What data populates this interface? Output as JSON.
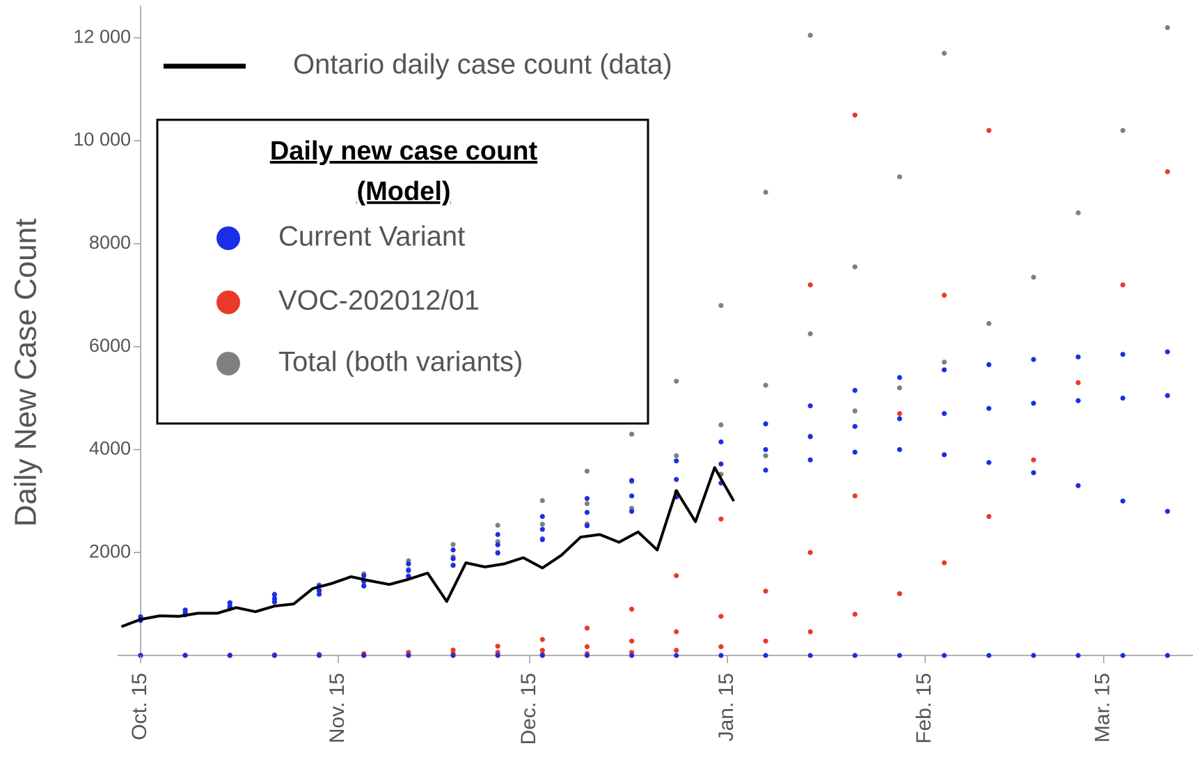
{
  "chart_data": {
    "type": "scatter",
    "y_label": "Daily New Case Count",
    "legend_title": [
      "Daily new case count",
      "(Model)"
    ],
    "xlim": [
      -3.6,
      165
    ],
    "ylim": [
      0,
      12600
    ],
    "xticks": [
      {
        "value": 0,
        "label": "Oct. 15"
      },
      {
        "value": 31,
        "label": "Nov. 15"
      },
      {
        "value": 61,
        "label": "Dec. 15"
      },
      {
        "value": 92,
        "label": "Jan. 15"
      },
      {
        "value": 123,
        "label": "Feb. 15"
      },
      {
        "value": 151,
        "label": "Mar. 15"
      }
    ],
    "yticks": [
      2000,
      4000,
      6000,
      8000,
      {
        "value": 10000,
        "label": "10 000"
      },
      {
        "value": 12000,
        "label": "12 000"
      }
    ],
    "x": [
      0,
      7,
      14,
      21,
      28,
      35,
      42,
      49,
      56,
      63,
      70,
      77,
      84,
      91,
      98,
      105,
      112,
      119,
      126,
      133,
      140,
      147,
      154,
      161
    ],
    "series": [
      {
        "name": "Current Variant",
        "color": "#1a2ee8",
        "values": [
          [
            750,
            880,
            1020,
            1180,
            1350,
            1550,
            1780,
            2050,
            2350,
            2700,
            3050,
            3400,
            3780,
            4150,
            4500,
            4850,
            5150,
            5400,
            5550,
            5650,
            5750,
            5800,
            5850,
            5900
          ],
          [
            700,
            820,
            950,
            1100,
            1260,
            1440,
            1650,
            1880,
            2150,
            2450,
            2780,
            3100,
            3420,
            3720,
            4000,
            4250,
            4450,
            4600,
            4700,
            4800,
            4900,
            4950,
            5000,
            5050
          ],
          [
            680,
            790,
            910,
            1040,
            1190,
            1350,
            1540,
            1750,
            1990,
            2250,
            2520,
            2800,
            3080,
            3350,
            3600,
            3800,
            3950,
            4000,
            3900,
            3750,
            3550,
            3300,
            3000,
            2800
          ],
          [
            0,
            0,
            0,
            0,
            0,
            0,
            0,
            0,
            0,
            0,
            0,
            0,
            0,
            0,
            0,
            0,
            0,
            0,
            0,
            0,
            0,
            0,
            0,
            0
          ]
        ]
      },
      {
        "name": "VOC-202012/01",
        "color": "#e8392a",
        "values": [
          [
            2,
            4,
            7,
            12,
            20,
            35,
            60,
            105,
            180,
            310,
            530,
            900,
            1550,
            2650,
            4500,
            7200,
            10500,
            null,
            null,
            null,
            null,
            null,
            null,
            null
          ],
          [
            1,
            2,
            3,
            5,
            8,
            13,
            22,
            36,
            60,
            100,
            170,
            280,
            460,
            760,
            1250,
            2000,
            3100,
            4700,
            7000,
            10200,
            null,
            null,
            null,
            null
          ],
          [
            0,
            0,
            0,
            0,
            1,
            2,
            4,
            7,
            12,
            20,
            35,
            60,
            100,
            170,
            280,
            460,
            800,
            1200,
            1800,
            2700,
            3800,
            5300,
            7200,
            9400
          ]
        ]
      },
      {
        "name": "Total (both variants)",
        "color": "#808080",
        "values": [
          [
            752,
            884,
            1027,
            1192,
            1370,
            1585,
            1840,
            2155,
            2530,
            3010,
            3580,
            4300,
            5330,
            6800,
            9000,
            12050,
            null,
            null,
            null,
            null,
            null,
            null,
            null,
            null
          ],
          [
            701,
            822,
            953,
            1105,
            1268,
            1453,
            1672,
            1916,
            2210,
            2550,
            2950,
            3380,
            3880,
            4480,
            5250,
            6250,
            7550,
            9300,
            11700,
            null,
            null,
            null,
            null,
            null
          ],
          [
            680,
            790,
            910,
            1040,
            1191,
            1352,
            1544,
            1757,
            2002,
            2270,
            2555,
            2860,
            3180,
            3520,
            3880,
            4260,
            4750,
            5200,
            5700,
            6450,
            7350,
            8600,
            10200,
            12200
          ]
        ]
      },
      {
        "name": "Ontario daily case count (data)",
        "color": "#000000",
        "type": "line",
        "x": [
          -3,
          0,
          3,
          6,
          9,
          12,
          15,
          18,
          21,
          24,
          27,
          30,
          33,
          36,
          39,
          42,
          45,
          48,
          51,
          54,
          57,
          60,
          63,
          66,
          69,
          72,
          75,
          78,
          81,
          84,
          87,
          90,
          93
        ],
        "values": [
          560,
          700,
          770,
          760,
          820,
          820,
          930,
          850,
          960,
          1000,
          1300,
          1400,
          1530,
          1450,
          1380,
          1480,
          1600,
          1050,
          1800,
          1720,
          1780,
          1900,
          1700,
          1950,
          2300,
          2350,
          2200,
          2400,
          2050,
          3200,
          2600,
          3650,
          3000
        ]
      }
    ]
  }
}
